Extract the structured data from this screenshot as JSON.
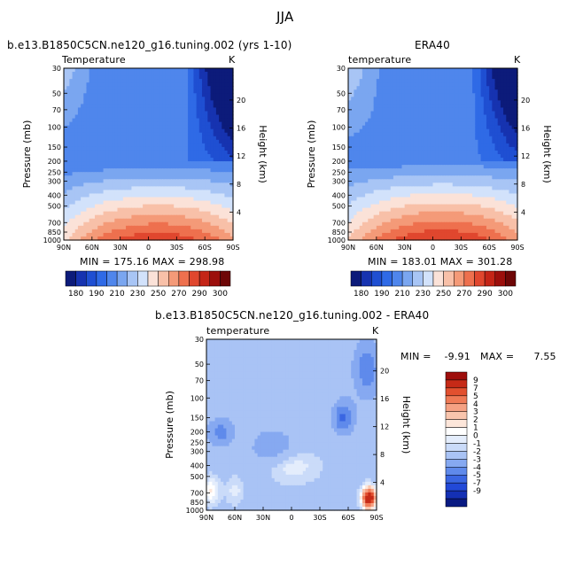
{
  "figure_title": "JJA",
  "colors": {
    "temp_levels": [
      "#0c1b7a",
      "#1633b0",
      "#1f4fd2",
      "#2f6ae6",
      "#4f86ec",
      "#7aa6f0",
      "#a8c5f5",
      "#d2e2fb",
      "#fbe2d8",
      "#f8c0a8",
      "#f49a78",
      "#ee704e",
      "#e0472e",
      "#c42517",
      "#9c0f0c",
      "#6e0707"
    ],
    "diff_levels": [
      "#091a82",
      "#1430b4",
      "#2249d8",
      "#3a66e2",
      "#5f8aeb",
      "#86a9f1",
      "#a9c3f5",
      "#cadbf9",
      "#e4edfc",
      "#ffffff",
      "#fde6da",
      "#f9c5ad",
      "#f5a183",
      "#ef7a56",
      "#e2502f",
      "#c62a17",
      "#9e0e0b"
    ]
  },
  "panels": [
    {
      "id": "model",
      "title": "b.e13.B1850C5CN.ne120_g16.tuning.002 (yrs 1-10)",
      "left_label": "Temperature",
      "right_label": "K",
      "stats": "MIN = 175.16   MAX = 298.98"
    },
    {
      "id": "obs",
      "title": "ERA40",
      "left_label": "temperature",
      "right_label": "K",
      "stats": "MIN = 183.01   MAX = 301.28"
    },
    {
      "id": "diff",
      "title": "b.e13.B1850C5CN.ne120_g16.tuning.002 - ERA40",
      "left_label": "temperature",
      "right_label": "K",
      "stats": "MIN =    -9.91   MAX =      7.55"
    }
  ],
  "chart_data": [
    {
      "type": "heatmap",
      "title": "b.e13.B1850C5CN.ne120_g16.tuning.002 (yrs 1-10)",
      "subtitle_left": "Temperature",
      "units": "K",
      "xlabel": "",
      "ylabel": "Pressure (mb)",
      "ylabel_right": "Height (km)",
      "x_ticks": [
        "90N",
        "60N",
        "30N",
        "0",
        "30S",
        "60S",
        "90S"
      ],
      "y_ticks": [
        "30",
        "50",
        "70",
        "100",
        "150",
        "200",
        "250",
        "300",
        "400",
        "500",
        "700",
        "850",
        "1000"
      ],
      "y_ticks_right": [
        "20",
        "16",
        "12",
        "8",
        "4"
      ],
      "y_scale": "log-pressure",
      "min": 175.16,
      "max": 298.98,
      "colorbar_levels": [
        "180",
        "190",
        "200",
        "210",
        "220",
        "230",
        "240",
        "250",
        "260",
        "270",
        "280",
        "290",
        "300"
      ],
      "colorbar_labels": [
        "180",
        "190",
        "210",
        "230",
        "250",
        "270",
        "290",
        "300"
      ]
    },
    {
      "type": "heatmap",
      "title": "ERA40",
      "subtitle_left": "temperature",
      "units": "K",
      "xlabel": "",
      "ylabel": "Pressure (mb)",
      "ylabel_right": "Height (km)",
      "x_ticks": [
        "90N",
        "60N",
        "30N",
        "0",
        "30S",
        "60S",
        "90S"
      ],
      "y_ticks": [
        "30",
        "50",
        "70",
        "100",
        "150",
        "200",
        "250",
        "300",
        "400",
        "500",
        "700",
        "850",
        "1000"
      ],
      "y_ticks_right": [
        "20",
        "16",
        "12",
        "8",
        "4"
      ],
      "y_scale": "log-pressure",
      "min": 183.01,
      "max": 301.28,
      "colorbar_levels": [
        "180",
        "190",
        "200",
        "210",
        "220",
        "230",
        "240",
        "250",
        "260",
        "270",
        "280",
        "290",
        "300"
      ],
      "colorbar_labels": [
        "180",
        "190",
        "210",
        "230",
        "250",
        "270",
        "290",
        "300"
      ]
    },
    {
      "type": "heatmap",
      "title": "b.e13.B1850C5CN.ne120_g16.tuning.002 - ERA40",
      "subtitle_left": "temperature",
      "units": "K",
      "xlabel": "",
      "ylabel": "Pressure (mb)",
      "ylabel_right": "Height (km)",
      "x_ticks": [
        "90N",
        "60N",
        "30N",
        "0",
        "30S",
        "60S",
        "90S"
      ],
      "y_ticks": [
        "30",
        "50",
        "70",
        "100",
        "150",
        "200",
        "250",
        "300",
        "400",
        "500",
        "700",
        "850",
        "1000"
      ],
      "y_ticks_right": [
        "20",
        "16",
        "12",
        "8",
        "4"
      ],
      "y_scale": "log-pressure",
      "min": -9.91,
      "max": 7.55,
      "colorbar_labels": [
        "9",
        "7",
        "5",
        "4",
        "3",
        "2",
        "1",
        "0",
        "-1",
        "-2",
        "-3",
        "-4",
        "-5",
        "-7",
        "-9"
      ]
    }
  ]
}
